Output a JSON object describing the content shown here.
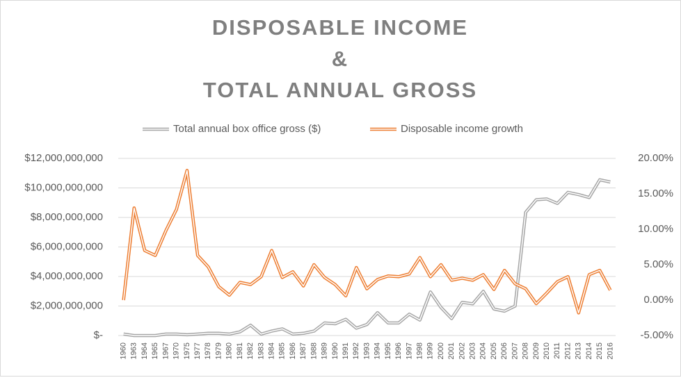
{
  "chart_data": {
    "type": "line",
    "title": [
      "DISPOSABLE INCOME",
      "&",
      "TOTAL ANNUAL GROSS"
    ],
    "categories": [
      "1960",
      "1963",
      "1964",
      "1965",
      "1967",
      "1970",
      "1975",
      "1977",
      "1978",
      "1979",
      "1980",
      "1981",
      "1982",
      "1983",
      "1984",
      "1985",
      "1986",
      "1987",
      "1988",
      "1989",
      "1990",
      "1991",
      "1992",
      "1993",
      "1994",
      "1995",
      "1996",
      "1997",
      "1998",
      "1999",
      "2000",
      "2001",
      "2002",
      "2003",
      "2004",
      "2005",
      "2006",
      "2007",
      "2008",
      "2009",
      "2010",
      "2011",
      "2012",
      "2013",
      "2014",
      "2015",
      "2016"
    ],
    "series": [
      {
        "name": "Total annual box office gross ($)",
        "color": "#a6a6a6",
        "axis": "y",
        "values": [
          100000000,
          0,
          0,
          0,
          100000000,
          100000000,
          50000000,
          100000000,
          150000000,
          150000000,
          100000000,
          250000000,
          700000000,
          100000000,
          300000000,
          450000000,
          100000000,
          150000000,
          300000000,
          850000000,
          800000000,
          1100000000,
          500000000,
          750000000,
          1550000000,
          850000000,
          850000000,
          1450000000,
          1050000000,
          2950000000,
          1900000000,
          1150000000,
          2250000000,
          2150000000,
          3000000000,
          1800000000,
          1650000000,
          2000000000,
          8350000000,
          9200000000,
          9250000000,
          8950000000,
          9700000000,
          9550000000,
          9350000000,
          10550000000,
          10400000000
        ]
      },
      {
        "name": "Disposable income growth",
        "color": "#ed7d31",
        "axis": "y2",
        "values": [
          0.0,
          13.0,
          7.0,
          6.3,
          9.8,
          12.8,
          18.3,
          6.3,
          4.7,
          1.9,
          0.7,
          2.5,
          2.2,
          3.3,
          7.0,
          3.2,
          4.0,
          2.0,
          5.0,
          3.2,
          2.2,
          0.6,
          4.6,
          1.6,
          2.9,
          3.4,
          3.3,
          3.7,
          6.0,
          3.3,
          5.0,
          2.8,
          3.1,
          2.8,
          3.6,
          1.5,
          4.2,
          2.3,
          1.6,
          -0.5,
          1.0,
          2.6,
          3.3,
          -1.8,
          3.6,
          4.2,
          1.4
        ]
      }
    ],
    "ylim": [
      0,
      12000000000
    ],
    "yticks": [
      {
        "value": 0,
        "label": "$-"
      },
      {
        "value": 2000000000,
        "label": "$2,000,000,000"
      },
      {
        "value": 4000000000,
        "label": "$4,000,000,000"
      },
      {
        "value": 6000000000,
        "label": "$6,000,000,000"
      },
      {
        "value": 8000000000,
        "label": "$8,000,000,000"
      },
      {
        "value": 10000000000,
        "label": "$10,000,000,000"
      },
      {
        "value": 12000000000,
        "label": "$12,000,000,000"
      }
    ],
    "y2lim": [
      -5,
      20
    ],
    "y2ticks": [
      {
        "value": -5,
        "label": "-5.00%"
      },
      {
        "value": 0,
        "label": "0.00%"
      },
      {
        "value": 5,
        "label": "5.00%"
      },
      {
        "value": 10,
        "label": "10.00%"
      },
      {
        "value": 15,
        "label": "15.00%"
      },
      {
        "value": 20,
        "label": "20.00%"
      }
    ],
    "legend": "top"
  }
}
